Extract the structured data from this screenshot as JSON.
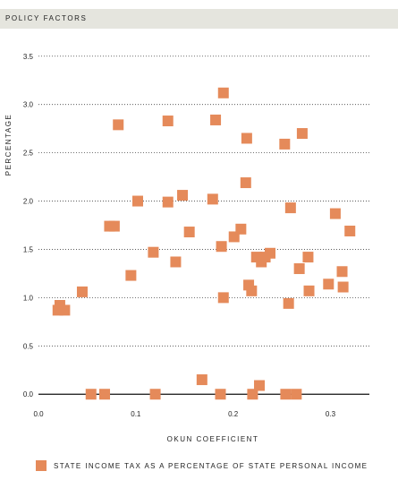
{
  "header": {
    "title": "POLICY FACTORS"
  },
  "colors": {
    "marker": "#e58a5a",
    "header_bg": "#e5e5de",
    "grid": "#444444",
    "axis": "#111111"
  },
  "chart_data": {
    "type": "scatter",
    "title": "POLICY FACTORS",
    "xlabel": "OKUN COEFFICIENT",
    "ylabel": "PERCENTAGE",
    "xlim": [
      0.0,
      0.34
    ],
    "ylim": [
      -0.1,
      3.6
    ],
    "xticks": [
      "0.0",
      "0.1",
      "0.2",
      "0.3"
    ],
    "yticks": [
      "0.0",
      "0.5",
      "1.0",
      "1.5",
      "2.0",
      "2.5",
      "3.0",
      "3.5"
    ],
    "grid": "horizontal dotted",
    "legend_position": "bottom",
    "series": [
      {
        "name": "STATE INCOME TAX AS A PERCENTAGE OF STATE PERSONAL INCOME",
        "points": [
          [
            0.02,
            0.87
          ],
          [
            0.022,
            0.92
          ],
          [
            0.027,
            0.87
          ],
          [
            0.045,
            1.06
          ],
          [
            0.054,
            0.0
          ],
          [
            0.068,
            0.0
          ],
          [
            0.073,
            1.74
          ],
          [
            0.078,
            1.74
          ],
          [
            0.082,
            2.79
          ],
          [
            0.095,
            1.23
          ],
          [
            0.102,
            2.0
          ],
          [
            0.118,
            1.47
          ],
          [
            0.12,
            0.0
          ],
          [
            0.133,
            2.83
          ],
          [
            0.133,
            1.99
          ],
          [
            0.141,
            1.37
          ],
          [
            0.148,
            2.06
          ],
          [
            0.155,
            1.68
          ],
          [
            0.168,
            0.15
          ],
          [
            0.179,
            2.02
          ],
          [
            0.182,
            2.84
          ],
          [
            0.187,
            0.0
          ],
          [
            0.188,
            1.53
          ],
          [
            0.19,
            1.0
          ],
          [
            0.19,
            3.12
          ],
          [
            0.201,
            1.63
          ],
          [
            0.208,
            1.71
          ],
          [
            0.213,
            2.19
          ],
          [
            0.214,
            2.65
          ],
          [
            0.216,
            1.13
          ],
          [
            0.219,
            1.07
          ],
          [
            0.22,
            0.0
          ],
          [
            0.224,
            1.42
          ],
          [
            0.227,
            0.09
          ],
          [
            0.229,
            1.37
          ],
          [
            0.233,
            1.42
          ],
          [
            0.238,
            1.46
          ],
          [
            0.253,
            2.59
          ],
          [
            0.254,
            0.0
          ],
          [
            0.257,
            0.94
          ],
          [
            0.259,
            1.93
          ],
          [
            0.265,
            0.0
          ],
          [
            0.268,
            1.3
          ],
          [
            0.271,
            2.7
          ],
          [
            0.277,
            1.42
          ],
          [
            0.278,
            1.07
          ],
          [
            0.298,
            1.14
          ],
          [
            0.305,
            1.87
          ],
          [
            0.312,
            1.27
          ],
          [
            0.313,
            1.11
          ],
          [
            0.32,
            1.69
          ]
        ]
      }
    ]
  },
  "legend": {
    "label": "STATE INCOME TAX AS A PERCENTAGE OF STATE PERSONAL INCOME"
  }
}
